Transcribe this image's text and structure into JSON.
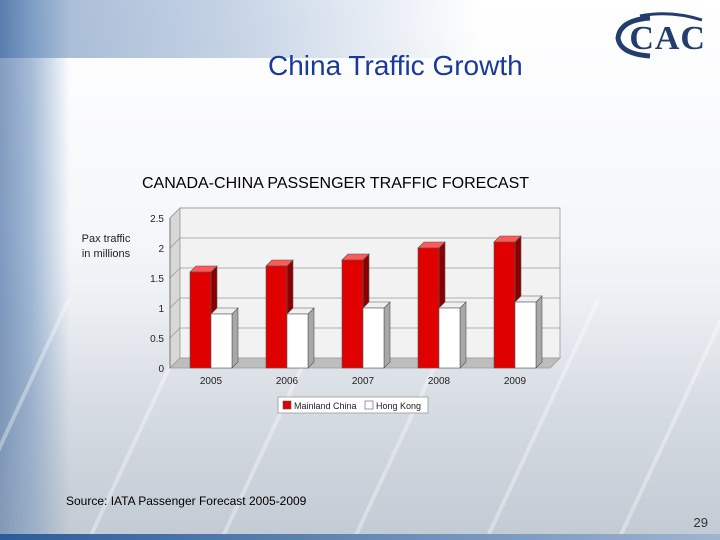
{
  "slide": {
    "title": "China Traffic Growth",
    "logo_text": "CAC",
    "source": "Source: IATA Passenger Forecast 2005-2009",
    "page_number": "29"
  },
  "colors": {
    "title": "#1a3a9a",
    "mainland": "#e00000",
    "hongkong": "#ffffff",
    "logo": "#223d6e"
  },
  "chart_data": {
    "type": "bar",
    "title": "CANADA-CHINA PASSENGER TRAFFIC FORECAST",
    "ylabel": "Pax traffic in millions",
    "xlabel": "",
    "categories": [
      "2005",
      "2006",
      "2007",
      "2008",
      "2009"
    ],
    "series": [
      {
        "name": "Mainland China",
        "values": [
          1.6,
          1.7,
          1.8,
          2.0,
          2.1
        ]
      },
      {
        "name": "Hong Kong",
        "values": [
          0.9,
          0.9,
          1.0,
          1.0,
          1.1
        ]
      }
    ],
    "ylim": [
      0,
      2.5
    ],
    "yticks": [
      "0",
      "0.5",
      "1",
      "1.5",
      "2",
      "2.5"
    ],
    "legend_position": "bottom",
    "grid": true
  }
}
